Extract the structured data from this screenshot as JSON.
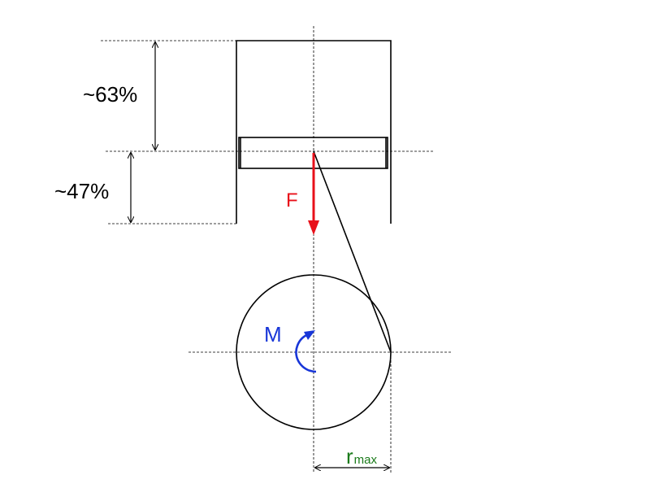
{
  "labels": {
    "upper_percent": "~63%",
    "lower_percent": "~47%",
    "force": "F",
    "moment": "M",
    "radius_main": "r",
    "radius_sub": "max"
  },
  "colors": {
    "force": "#e8101a",
    "moment": "#1836d8",
    "radius": "#1a7a1a",
    "line": "#000000"
  }
}
